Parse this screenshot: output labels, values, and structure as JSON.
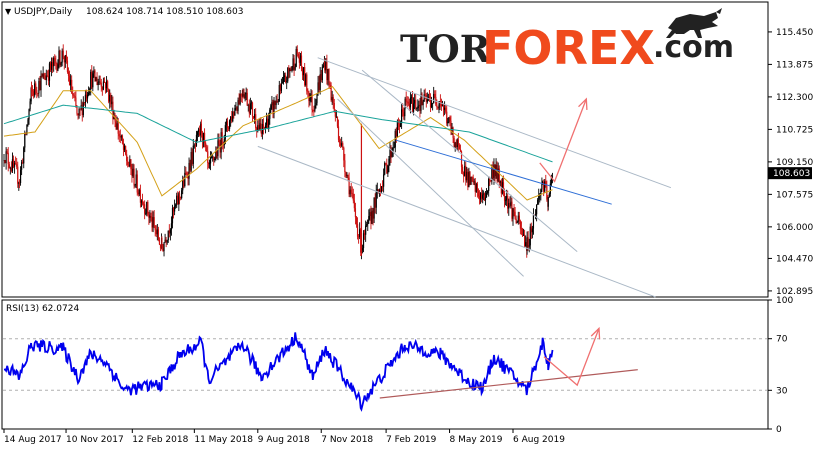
{
  "chart_data": [
    {
      "type": "line",
      "title": "USDJPY,Daily",
      "ohlc_header": "108.624 108.714 108.510 108.603",
      "last_price": "108.603",
      "y_tick_labels": [
        "115.450",
        "113.875",
        "112.300",
        "110.725",
        "109.150",
        "107.575",
        "106.000",
        "104.470",
        "102.895"
      ],
      "ylim": [
        102.6,
        116.9
      ],
      "x_tick_labels": [
        "14 Aug 2017",
        "10 Nov 2017",
        "12 Feb 2018",
        "11 May 2018",
        "9 Aug 2018",
        "7 Nov 2018",
        "7 Feb 2019",
        "8 May 2019",
        "6 Aug 2019"
      ],
      "grid": false,
      "series": [
        {
          "name": "",
          "kind": "candles",
          "color": "#cc1111",
          "anchors": [
            [
              "14 Aug 2017",
              109.6
            ],
            [
              "5 Sep 2017",
              108.3
            ],
            [
              "22 Sep 2017",
              112.5
            ],
            [
              "6 Nov 2017",
              114.4
            ],
            [
              "27 Nov 2017",
              111.2
            ],
            [
              "15 Dec 2017",
              113.2
            ],
            [
              "5 Jan 2018",
              113.0
            ],
            [
              "1 Feb 2018",
              109.5
            ],
            [
              "26 Mar 2018",
              105.0
            ],
            [
              "20 Apr 2018",
              107.5
            ],
            [
              "21 May 2018",
              110.8
            ],
            [
              "31 May 2018",
              108.7
            ],
            [
              "19 Jul 2018",
              112.7
            ],
            [
              "14 Aug 2018",
              110.5
            ],
            [
              "4 Oct 2018",
              114.4
            ],
            [
              "26 Oct 2018",
              111.8
            ],
            [
              "12 Nov 2018",
              114.0
            ],
            [
              "3 Jan 2019",
              105.0
            ],
            [
              "6 Mar 2019",
              111.9
            ],
            [
              "25 Apr 2019",
              112.2
            ],
            [
              "3 Jun 2019",
              108.3
            ],
            [
              "25 Jun 2019",
              107.3
            ],
            [
              "10 Jul 2019",
              108.9
            ],
            [
              "26 Aug 2019",
              105.1
            ],
            [
              "17 Sep 2019",
              108.2
            ],
            [
              "25 Sep 2019",
              107.1
            ],
            [
              "1 Oct 2019",
              108.603
            ]
          ],
          "flash_crash": [
            "3 Jan 2019",
            104.6
          ]
        },
        {
          "name": "",
          "kind": "moving-average",
          "color": "#d4a017",
          "anchors": [
            [
              "14 Aug 2017",
              110.4
            ],
            [
              "27 Sep 2017",
              110.6
            ],
            [
              "6 Nov 2017",
              112.6
            ],
            [
              "15 Dec 2017",
              112.6
            ],
            [
              "19 Feb 2018",
              110.1
            ],
            [
              "26 Mar 2018",
              107.5
            ],
            [
              "14 May 2018",
              108.8
            ],
            [
              "19 Jul 2018",
              110.9
            ],
            [
              "2 Oct 2018",
              112.0
            ],
            [
              "23 Nov 2018",
              112.8
            ],
            [
              "28 Jan 2019",
              109.8
            ],
            [
              "11 Apr 2019",
              111.3
            ],
            [
              "29 May 2019",
              110.2
            ],
            [
              "26 Aug 2019",
              107.3
            ],
            [
              "1 Oct 2019",
              107.8
            ]
          ]
        },
        {
          "name": "",
          "kind": "moving-average",
          "color": "#1aa39a",
          "anchors": [
            [
              "14 Aug 2017",
              111.0
            ],
            [
              "6 Nov 2017",
              111.9
            ],
            [
              "19 Feb 2018",
              111.5
            ],
            [
              "14 May 2018",
              110.1
            ],
            [
              "27 Aug 2018",
              110.8
            ],
            [
              "26 Nov 2018",
              111.6
            ],
            [
              "1 Feb 2019",
              111.2
            ],
            [
              "5 Jun 2019",
              110.6
            ],
            [
              "1 Oct 2019",
              109.15
            ]
          ]
        }
      ],
      "annotations": [
        {
          "kind": "channel",
          "color": "#aab8c6",
          "points": [
            [
              "2 Nov 2018",
              114.2
            ],
            [
              "17 Mar 2020",
              107.9
            ]
          ]
        },
        {
          "kind": "channel",
          "color": "#aab8c6",
          "points": [
            [
              "9 Aug 2018",
              109.9
            ],
            [
              "24 Feb 2020",
              102.6
            ]
          ]
        },
        {
          "kind": "channel",
          "color": "#aab8c6",
          "points": [
            [
              "4 Jan 2019",
              113.6
            ],
            [
              "5 Nov 2019",
              104.8
            ]
          ]
        },
        {
          "kind": "channel",
          "color": "#aab8c6",
          "points": [
            [
              "30 Nov 2018",
              112.2
            ],
            [
              "21 Aug 2019",
              103.6
            ]
          ]
        },
        {
          "kind": "trendline",
          "color": "#2f6fd6",
          "points": [
            [
              "21 Feb 2019",
              110.2
            ],
            [
              "24 Dec 2019",
              107.1
            ]
          ]
        },
        {
          "kind": "forecast-arrow",
          "color": "#f07070",
          "points": [
            [
              "13 Sep 2019",
              109.1
            ],
            [
              "4 Oct 2019",
              108.2
            ],
            [
              "18 Nov 2019",
              112.2
            ]
          ]
        }
      ]
    },
    {
      "type": "line",
      "title": "RSI(13) 62.0724",
      "y_tick_labels": [
        "100",
        "70",
        "30",
        "0"
      ],
      "ylim": [
        0,
        100
      ],
      "levels": [
        70,
        30
      ],
      "series": [
        {
          "name": "",
          "color": "#0000ee",
          "anchors": [
            [
              "14 Aug 2017",
              50
            ],
            [
              "5 Sep 2017",
              40
            ],
            [
              "22 Sep 2017",
              65
            ],
            [
              "6 Nov 2017",
              62
            ],
            [
              "27 Nov 2017",
              40
            ],
            [
              "15 Dec 2017",
              58
            ],
            [
              "5 Jan 2018",
              52
            ],
            [
              "1 Feb 2018",
              30
            ],
            [
              "26 Mar 2018",
              35
            ],
            [
              "20 Apr 2018",
              57
            ],
            [
              "21 May 2018",
              67
            ],
            [
              "31 May 2018",
              38
            ],
            [
              "19 Jul 2018",
              66
            ],
            [
              "14 Aug 2018",
              40
            ],
            [
              "4 Oct 2018",
              72
            ],
            [
              "26 Oct 2018",
              40
            ],
            [
              "12 Nov 2018",
              62
            ],
            [
              "3 Jan 2019",
              20
            ],
            [
              "6 Mar 2019",
              65
            ],
            [
              "25 Apr 2019",
              58
            ],
            [
              "3 Jun 2019",
              37
            ],
            [
              "25 Jun 2019",
              32
            ],
            [
              "10 Jul 2019",
              56
            ],
            [
              "26 Aug 2019",
              30
            ],
            [
              "17 Sep 2019",
              67
            ],
            [
              "25 Sep 2019",
              50
            ],
            [
              "1 Oct 2019",
              62.0724
            ]
          ]
        }
      ],
      "annotations": [
        {
          "kind": "support-line",
          "color": "#b05a5a",
          "points": [
            [
              "29 Jan 2019",
              24
            ],
            [
              "30 Jan 2020",
              46
            ]
          ]
        },
        {
          "kind": "forecast-arrow",
          "color": "#f07070",
          "points": [
            [
              "19 Sep 2019",
              56
            ],
            [
              "5 Nov 2019",
              34
            ],
            [
              "6 Dec 2019",
              78
            ]
          ]
        }
      ]
    }
  ],
  "watermark": {
    "part1": "TOR",
    "part2": "FOREX",
    "part3": ".com",
    "mascot": "bull-icon"
  }
}
